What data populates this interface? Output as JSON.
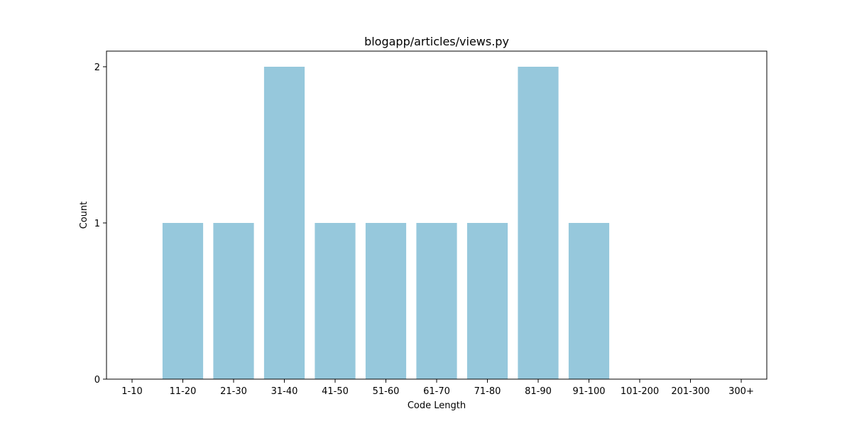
{
  "chart_data": {
    "type": "bar",
    "title": "blogapp/articles/views.py",
    "xlabel": "Code Length",
    "ylabel": "Count",
    "categories": [
      "1-10",
      "11-20",
      "21-30",
      "31-40",
      "41-50",
      "51-60",
      "61-70",
      "71-80",
      "81-90",
      "91-100",
      "101-200",
      "201-300",
      "300+"
    ],
    "values": [
      0,
      1,
      1,
      2,
      1,
      1,
      1,
      1,
      2,
      1,
      0,
      0,
      0
    ],
    "ylim": [
      0,
      2.1
    ],
    "yticks": [
      "0",
      "1",
      "2"
    ],
    "bar_color": "#96c8dc",
    "grid": false,
    "legend": "none"
  }
}
